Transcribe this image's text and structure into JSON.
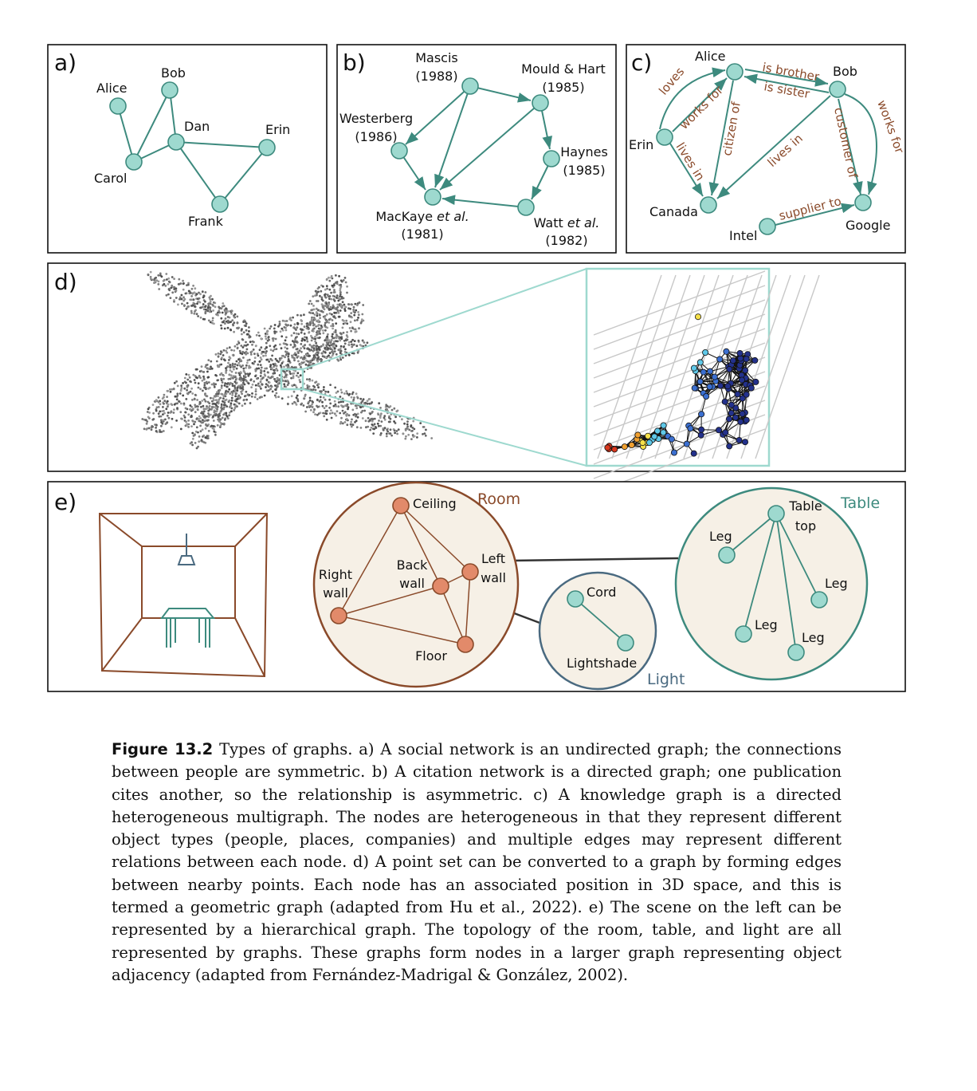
{
  "panels": {
    "a": {
      "label": "a)",
      "nodes": [
        "Alice",
        "Bob",
        "Dan",
        "Erin",
        "Carol",
        "Frank"
      ]
    },
    "b": {
      "label": "b)",
      "mascis": [
        "Mascis",
        "(1988)"
      ],
      "mould": [
        "Mould & Hart",
        "(1985)"
      ],
      "westerberg": [
        "Westerberg",
        "(1986)"
      ],
      "haynes": [
        "Haynes",
        "(1985)"
      ],
      "mackaye": [
        "MacKaye",
        "et al.",
        "(1981)"
      ],
      "watt": [
        "Watt",
        "et al.",
        "(1982)"
      ]
    },
    "c": {
      "label": "c)",
      "nodes": [
        "Alice",
        "Bob",
        "Erin",
        "Canada",
        "Intel",
        "Google"
      ],
      "relations": [
        "is brother",
        "is sister",
        "loves",
        "works for",
        "citizen of",
        "lives in",
        "lives in",
        "customer of",
        "works for",
        "supplier to"
      ]
    },
    "d": {
      "label": "d)"
    },
    "e": {
      "label": "e)",
      "room": {
        "title": "Room",
        "nodes": [
          "Ceiling",
          "Right",
          "wall",
          "Back",
          "wall",
          "Left",
          "wall",
          "Floor"
        ]
      },
      "light": {
        "title": "Light",
        "nodes": [
          "Cord",
          "Lightshade"
        ]
      },
      "table": {
        "title": "Table",
        "nodes": [
          "Table",
          "top",
          "Leg",
          "Leg",
          "Leg",
          "Leg"
        ]
      }
    }
  },
  "caption": {
    "title": "Figure 13.2",
    "text": "Types of graphs. a) A social network is an undirected graph; the connections between people are symmetric. b) A citation network is a directed graph; one publication cites another, so the relationship is asymmetric. c) A knowledge graph is a directed heterogeneous multigraph. The nodes are heterogeneous in that they represent different object types (people, places, companies) and multiple edges may represent different relations between each node. d) A point set can be converted to a graph by forming edges between nearby points. Each node has an associated position in 3D space, and this is termed a geometric graph (adapted from Hu et al., 2022). e) The scene on the left can be represented by a hierarchical graph. The topology of the room, table, and light are all represented by graphs. These graphs form nodes in a larger graph representing object adjacency (adapted from Fernández-Madrigal & González, 2002)."
  },
  "colors": {
    "teal_node": "#9ed9cf",
    "teal_edge": "#3d8a7e",
    "room_brown": "#8a4a2a",
    "room_node": "#e28a6a",
    "light_blue": "#4a6a80",
    "cluster_fill": "#f6f0e6"
  }
}
